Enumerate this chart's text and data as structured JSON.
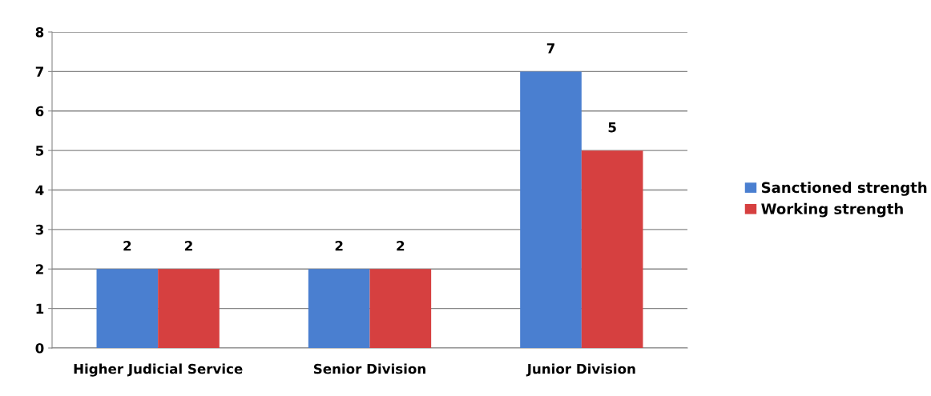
{
  "chart_data": {
    "type": "bar",
    "categories": [
      "Higher Judicial Service",
      "Senior Division",
      "Junior Division"
    ],
    "series": [
      {
        "name": "Sanctioned strength",
        "color": "#4a7fd0",
        "values": [
          2,
          2,
          7
        ]
      },
      {
        "name": "Working strength",
        "color": "#d64040",
        "values": [
          2,
          2,
          5
        ]
      }
    ],
    "ylim": [
      0,
      8
    ],
    "yticks": [
      0,
      1,
      2,
      3,
      4,
      5,
      6,
      7,
      8
    ],
    "grid": "y",
    "legend": "right",
    "data_labels": true
  }
}
